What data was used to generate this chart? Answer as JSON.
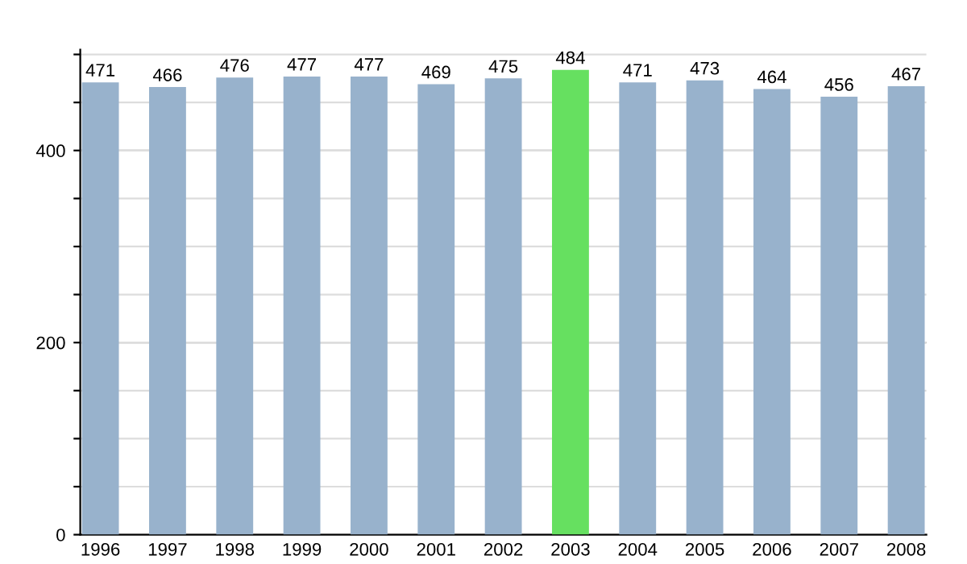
{
  "chart_data": {
    "type": "bar",
    "categories": [
      "1996",
      "1997",
      "1998",
      "1999",
      "2000",
      "2001",
      "2002",
      "2003",
      "2004",
      "2005",
      "2006",
      "2007",
      "2008"
    ],
    "values": [
      471,
      466,
      476,
      477,
      477,
      469,
      475,
      484,
      471,
      473,
      464,
      456,
      467
    ],
    "colors": [
      "#98b2cc",
      "#98b2cc",
      "#98b2cc",
      "#98b2cc",
      "#98b2cc",
      "#98b2cc",
      "#98b2cc",
      "#66e060",
      "#98b2cc",
      "#98b2cc",
      "#98b2cc",
      "#98b2cc",
      "#98b2cc"
    ],
    "ylim": [
      0,
      505
    ],
    "yticks": [
      0,
      {
        "value": 50,
        "label": null
      },
      {
        "value": 100,
        "label": null
      },
      {
        "value": 150,
        "label": null
      },
      200,
      {
        "value": 250,
        "label": null
      },
      {
        "value": 300,
        "label": null
      },
      {
        "value": 350,
        "label": null
      },
      400,
      {
        "value": 450,
        "label": null
      },
      {
        "value": 500,
        "label": null
      }
    ],
    "grid": "y",
    "data_labels": true
  }
}
